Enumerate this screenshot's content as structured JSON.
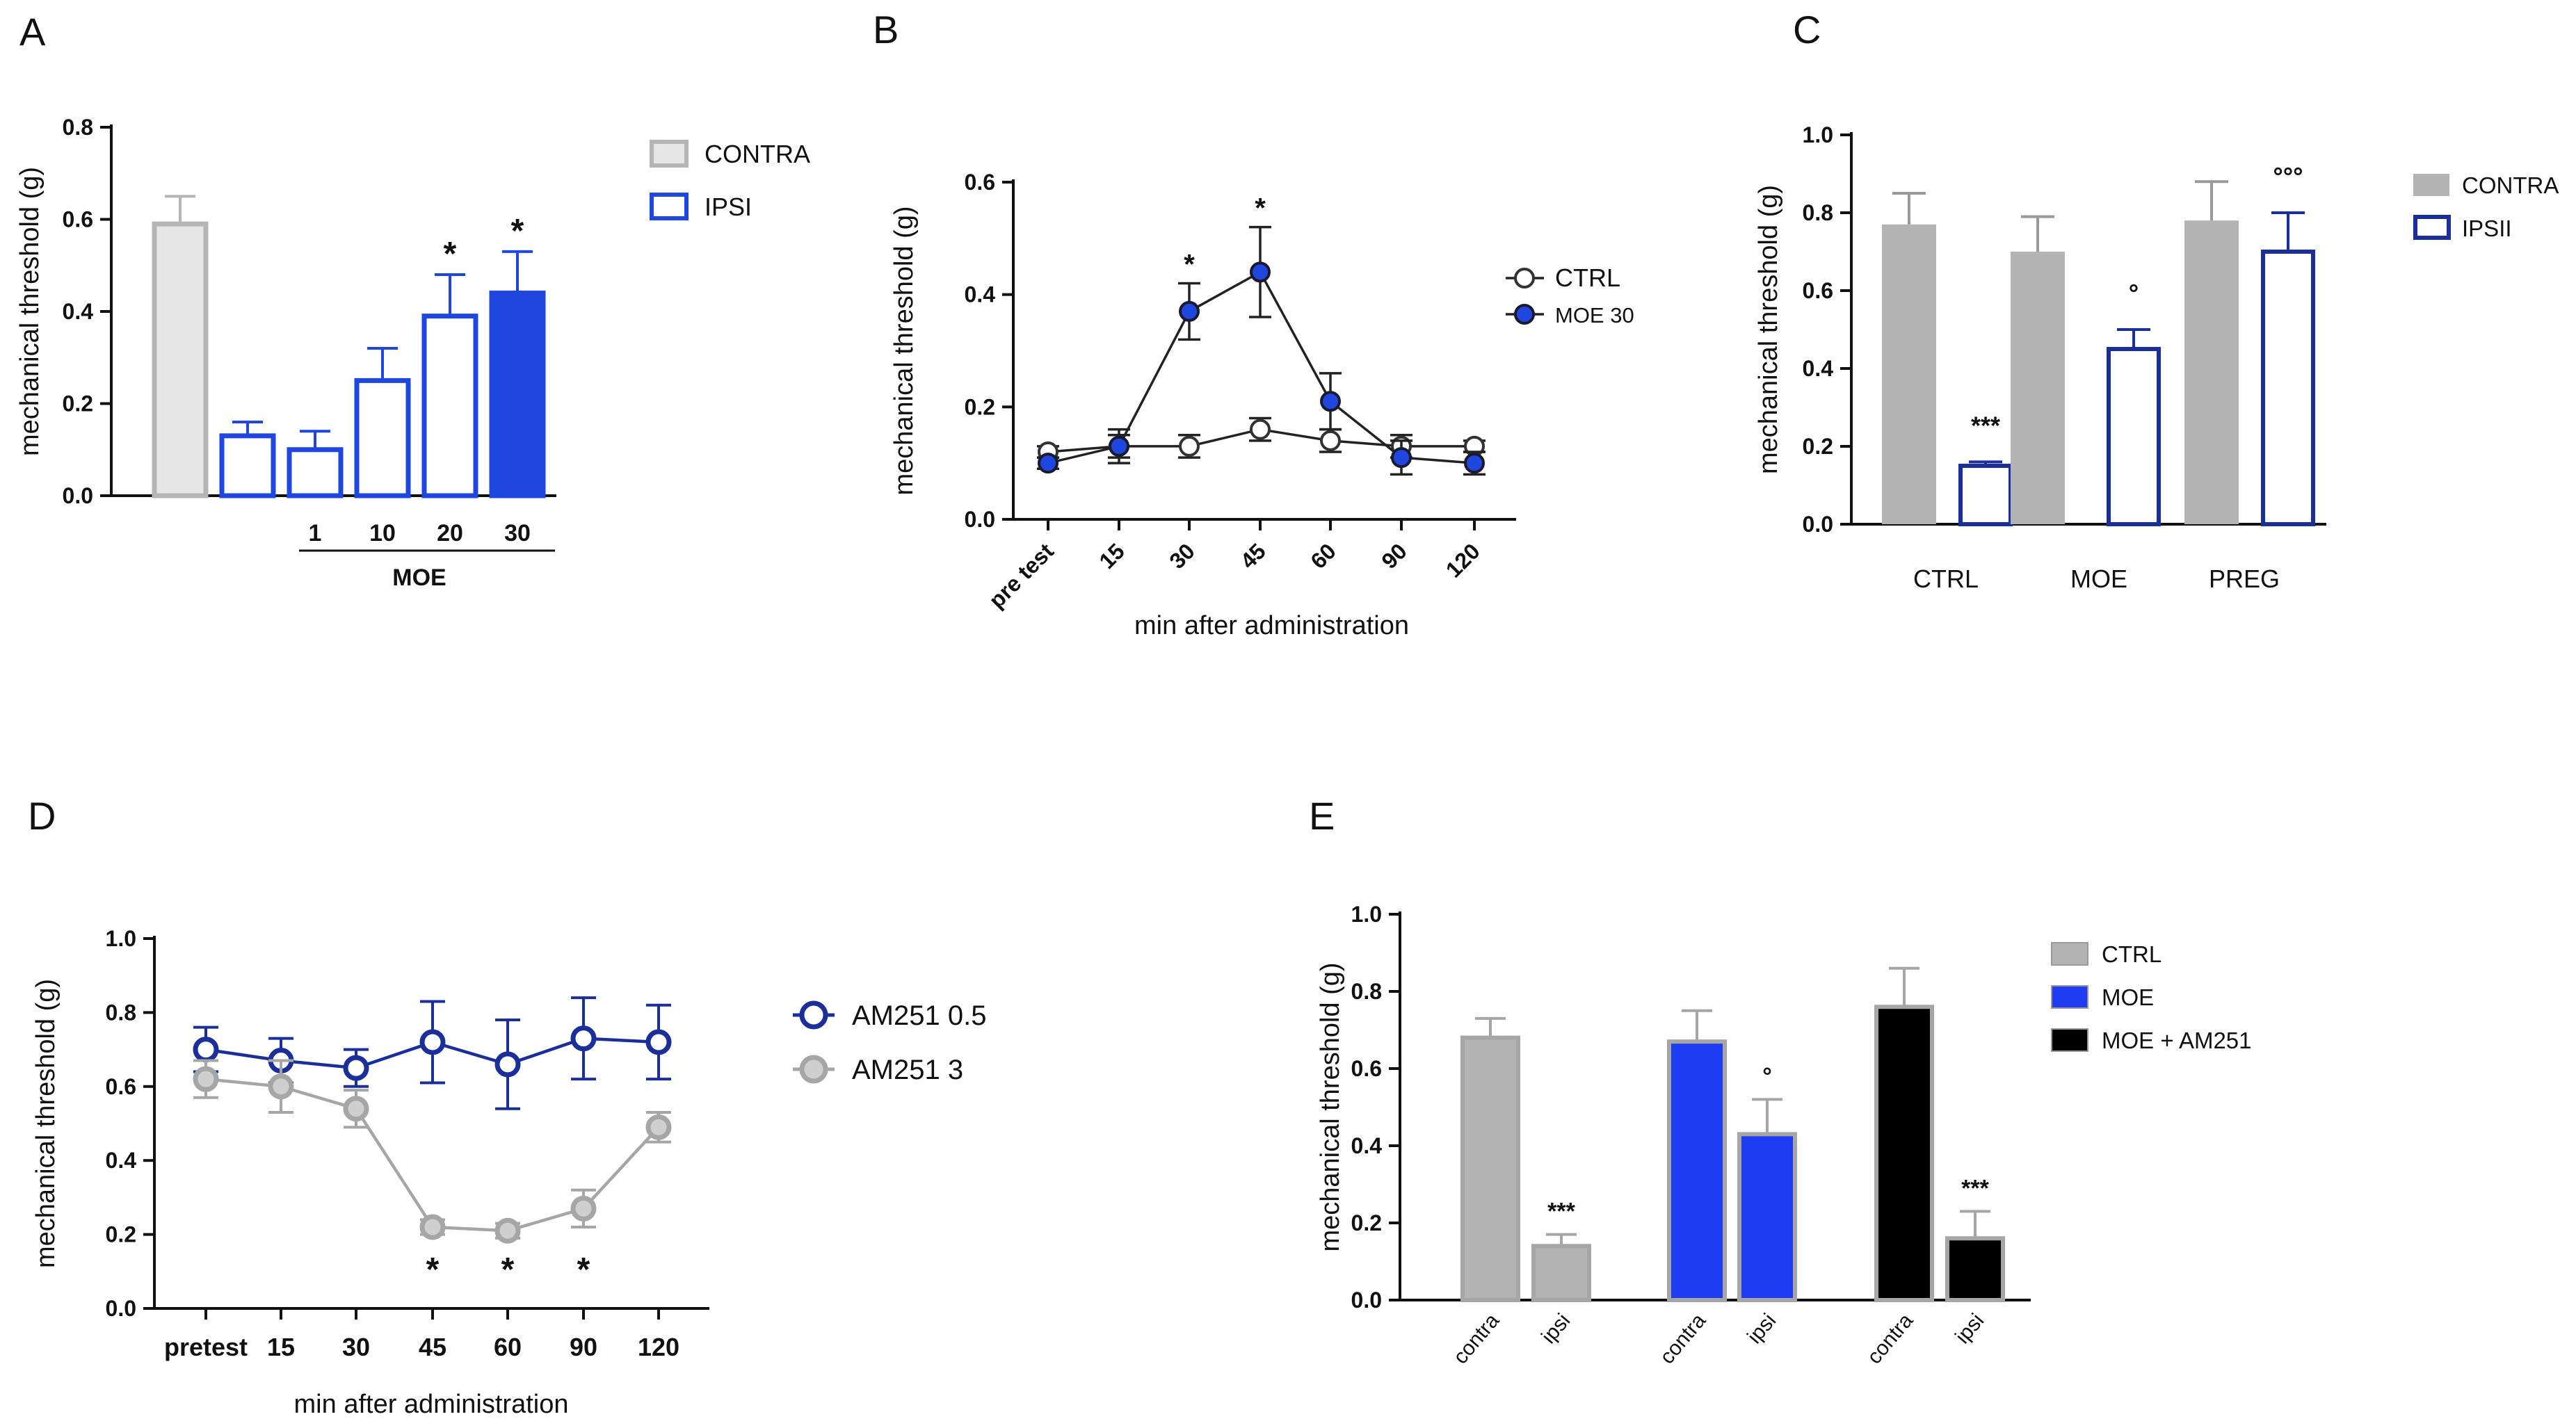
{
  "chart_data": [
    {
      "id": "A",
      "type": "bar",
      "panel_label": "A",
      "ylabel": "mechanical threshold (g)",
      "ylim": [
        0,
        0.8
      ],
      "yticks": [
        "0.0",
        "0.2",
        "0.4",
        "0.6",
        "0.8"
      ],
      "categories": [
        "",
        "",
        "1",
        "10",
        "20",
        "30"
      ],
      "group_label": "MOE",
      "bars": [
        {
          "value": 0.59,
          "err": 0.06,
          "series": "CONTRA",
          "annotation": ""
        },
        {
          "value": 0.13,
          "err": 0.03,
          "series": "IPSI",
          "annotation": ""
        },
        {
          "value": 0.1,
          "err": 0.04,
          "series": "IPSI",
          "annotation": ""
        },
        {
          "value": 0.25,
          "err": 0.07,
          "series": "IPSI",
          "annotation": ""
        },
        {
          "value": 0.39,
          "err": 0.09,
          "series": "IPSI",
          "annotation": "*"
        },
        {
          "value": 0.44,
          "err": 0.09,
          "series": "IPSI",
          "annotation": "*",
          "filled": true
        }
      ],
      "legend": [
        {
          "name": "CONTRA",
          "fill": "#e6e6e6",
          "stroke": "#b5b5b5"
        },
        {
          "name": "IPSI",
          "fill": "#ffffff",
          "stroke": "#1f47e0"
        }
      ],
      "colors": {
        "contra_fill": "#e6e6e6",
        "contra_stroke": "#b5b5b5",
        "ipsi": "#1f47e0"
      }
    },
    {
      "id": "B",
      "type": "line",
      "panel_label": "B",
      "ylabel": "mechanical threshold (g)",
      "xlabel": "min after administration",
      "ylim": [
        0,
        0.6
      ],
      "yticks": [
        "0.0",
        "0.2",
        "0.4",
        "0.6"
      ],
      "x": [
        "pre test",
        "15",
        "30",
        "45",
        "60",
        "90",
        "120"
      ],
      "series": [
        {
          "name": "CTRL",
          "values": [
            0.12,
            0.13,
            0.13,
            0.16,
            0.14,
            0.13,
            0.13
          ],
          "err": [
            0.01,
            0.02,
            0.02,
            0.02,
            0.02,
            0.02,
            0.01
          ],
          "fill": "#ffffff",
          "stroke": "#333333"
        },
        {
          "name": "MOE 30",
          "values": [
            0.1,
            0.13,
            0.37,
            0.44,
            0.21,
            0.11,
            0.1
          ],
          "err": [
            0.01,
            0.03,
            0.05,
            0.08,
            0.05,
            0.03,
            0.02
          ],
          "fill": "#1f47e0",
          "stroke": "#1a1a2e"
        }
      ],
      "annotations": [
        {
          "x": "30",
          "text": "*"
        },
        {
          "x": "45",
          "text": "*"
        }
      ],
      "legend_position": "right"
    },
    {
      "id": "C",
      "type": "bar",
      "panel_label": "C",
      "ylabel": "mechanical threshold (g)",
      "ylim": [
        0,
        1.0
      ],
      "yticks": [
        "0.0",
        "0.2",
        "0.4",
        "0.6",
        "0.8",
        "1.0"
      ],
      "categories": [
        "CTRL",
        "MOE",
        "PREG"
      ],
      "series": [
        {
          "name": "CONTRA",
          "values": [
            0.77,
            0.7,
            0.78
          ],
          "err": [
            0.08,
            0.09,
            0.1
          ],
          "annotations": [
            "",
            "",
            ""
          ]
        },
        {
          "name": "IPSII",
          "values": [
            0.15,
            0.45,
            0.7
          ],
          "err": [
            0.01,
            0.05,
            0.1
          ],
          "annotations": [
            "***",
            "°",
            "°°°"
          ]
        }
      ],
      "colors": {
        "contra": "#b3b3b3",
        "ipsi": "#1b2f9c"
      }
    },
    {
      "id": "D",
      "type": "line",
      "panel_label": "D",
      "ylabel": "mechanical threshold (g)",
      "xlabel": "min after administration",
      "ylim": [
        0,
        1.0
      ],
      "yticks": [
        "0.0",
        "0.2",
        "0.4",
        "0.6",
        "0.8",
        "1.0"
      ],
      "x": [
        "pretest",
        "15",
        "30",
        "45",
        "60",
        "90",
        "120"
      ],
      "series": [
        {
          "name": "AM251 0.5",
          "values": [
            0.7,
            0.67,
            0.65,
            0.72,
            0.66,
            0.73,
            0.72
          ],
          "err": [
            0.06,
            0.06,
            0.05,
            0.11,
            0.12,
            0.11,
            0.1
          ],
          "color": "#1b2f9c"
        },
        {
          "name": "AM251 3",
          "values": [
            0.62,
            0.6,
            0.54,
            0.22,
            0.21,
            0.27,
            0.49
          ],
          "err": [
            0.05,
            0.07,
            0.05,
            0.02,
            0.02,
            0.05,
            0.04
          ],
          "color": "#a6a6a6"
        }
      ],
      "annotations": [
        {
          "x": "45",
          "text": "*"
        },
        {
          "x": "60",
          "text": "*"
        },
        {
          "x": "90",
          "text": "*"
        }
      ]
    },
    {
      "id": "E",
      "type": "bar",
      "panel_label": "E",
      "ylabel": "mechanical threshold (g)",
      "ylim": [
        0,
        1.0
      ],
      "yticks": [
        "0.0",
        "0.2",
        "0.4",
        "0.6",
        "0.8",
        "1.0"
      ],
      "categories": [
        "contra",
        "ipsi",
        "contra",
        "ipsi",
        "contra",
        "ipsi"
      ],
      "bars": [
        {
          "value": 0.68,
          "err": 0.05,
          "series": "CTRL",
          "annotation": ""
        },
        {
          "value": 0.14,
          "err": 0.03,
          "series": "CTRL",
          "annotation": "***"
        },
        {
          "value": 0.67,
          "err": 0.08,
          "series": "MOE",
          "annotation": ""
        },
        {
          "value": 0.43,
          "err": 0.09,
          "series": "MOE",
          "annotation": "°"
        },
        {
          "value": 0.76,
          "err": 0.1,
          "series": "MOE + AM251",
          "annotation": ""
        },
        {
          "value": 0.16,
          "err": 0.07,
          "series": "MOE + AM251",
          "annotation": "***"
        }
      ],
      "legend": [
        {
          "name": "CTRL",
          "fill": "#b3b3b3"
        },
        {
          "name": "MOE",
          "fill": "#1f3cf5"
        },
        {
          "name": "MOE + AM251",
          "fill": "#000000"
        }
      ],
      "colors": {
        "bar_stroke": "#a6a6a6"
      }
    }
  ]
}
